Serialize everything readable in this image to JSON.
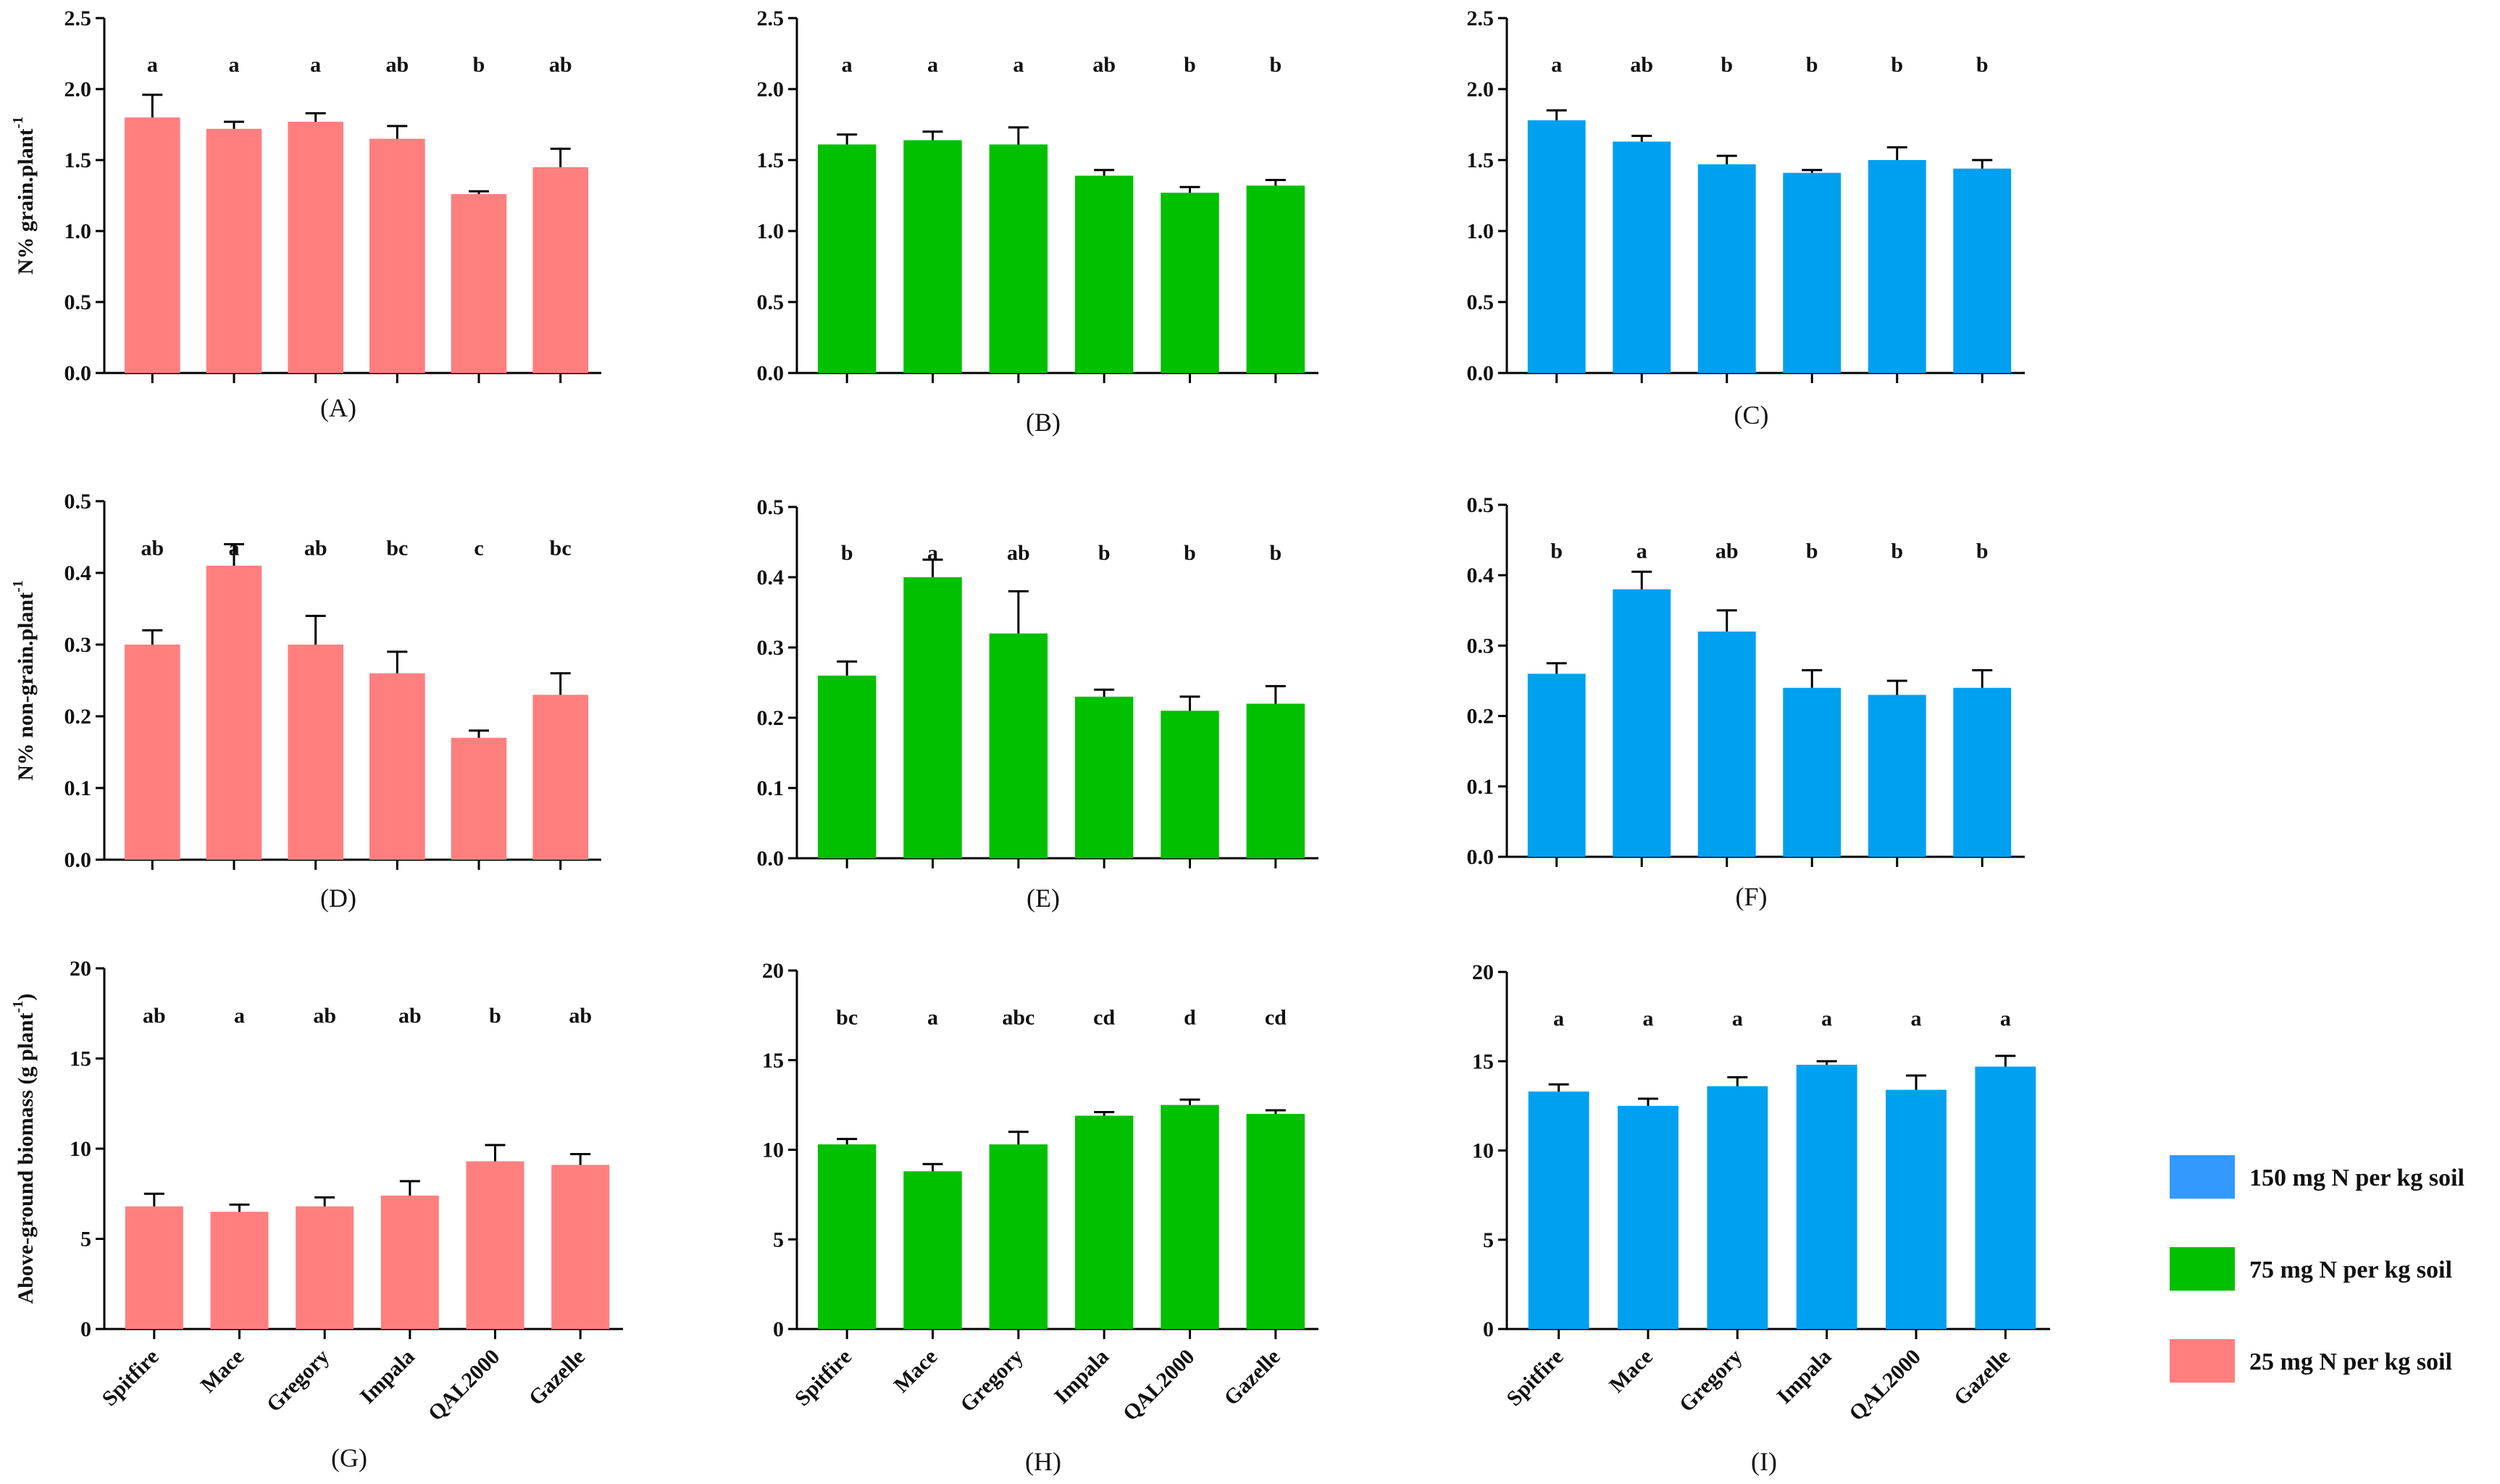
{
  "chart_data": [
    {
      "panel": "(A)",
      "type": "bar",
      "ylabel": "N% grain.plant",
      "ylabel_sup": "-1",
      "ylim": [
        0,
        2.5
      ],
      "yticks": [
        "0.0",
        "0.5",
        "1.0",
        "1.5",
        "2.0",
        "2.5"
      ],
      "color": "#FF7F7F",
      "treatment": "25 mg N per kg soil",
      "categories": [
        "Spitfire",
        "Mace",
        "Gregory",
        "Impala",
        "QAL2000",
        "Gazelle"
      ],
      "values": [
        1.8,
        1.72,
        1.77,
        1.65,
        1.26,
        1.45
      ],
      "errors": [
        0.16,
        0.05,
        0.06,
        0.09,
        0.02,
        0.13
      ],
      "letters": [
        "a",
        "a",
        "a",
        "ab",
        "b",
        "ab"
      ],
      "show_categories": false
    },
    {
      "panel": "(B)",
      "type": "bar",
      "ylabel": "",
      "ylabel_sup": "",
      "ylim": [
        0,
        2.5
      ],
      "yticks": [
        "0.0",
        "0.5",
        "1.0",
        "1.5",
        "2.0",
        "2.5"
      ],
      "color": "#00C000",
      "treatment": "75 mg N per kg soil",
      "categories": [
        "Spitfire",
        "Mace",
        "Gregory",
        "Impala",
        "QAL2000",
        "Gazelle"
      ],
      "values": [
        1.61,
        1.64,
        1.61,
        1.39,
        1.27,
        1.32
      ],
      "errors": [
        0.07,
        0.06,
        0.12,
        0.04,
        0.04,
        0.04
      ],
      "letters": [
        "a",
        "a",
        "a",
        "ab",
        "b",
        "b"
      ],
      "show_categories": false
    },
    {
      "panel": "(C)",
      "type": "bar",
      "ylabel": "",
      "ylabel_sup": "",
      "ylim": [
        0,
        2.5
      ],
      "yticks": [
        "0.0",
        "0.5",
        "1.0",
        "1.5",
        "2.0",
        "2.5"
      ],
      "color": "#00A0F0",
      "treatment": "150 mg N per kg soil",
      "categories": [
        "Spitfire",
        "Mace",
        "Gregory",
        "Impala",
        "QAL2000",
        "Gazelle"
      ],
      "values": [
        1.78,
        1.63,
        1.47,
        1.41,
        1.5,
        1.44
      ],
      "errors": [
        0.07,
        0.04,
        0.06,
        0.02,
        0.09,
        0.06
      ],
      "letters": [
        "a",
        "ab",
        "b",
        "b",
        "b",
        "b"
      ],
      "show_categories": false
    },
    {
      "panel": "(D)",
      "type": "bar",
      "ylabel": "N% non-grain.plant",
      "ylabel_sup": "-1",
      "ylim": [
        0,
        0.5
      ],
      "yticks": [
        "0.0",
        "0.1",
        "0.2",
        "0.3",
        "0.4",
        "0.5"
      ],
      "color": "#FF7F7F",
      "treatment": "25 mg N per kg soil",
      "categories": [
        "Spitfire",
        "Mace",
        "Gregory",
        "Impala",
        "QAL2000",
        "Gazelle"
      ],
      "values": [
        0.3,
        0.41,
        0.3,
        0.26,
        0.17,
        0.23
      ],
      "errors": [
        0.02,
        0.03,
        0.04,
        0.03,
        0.01,
        0.03
      ],
      "letters": [
        "ab",
        "a",
        "ab",
        "bc",
        "c",
        "bc"
      ],
      "show_categories": false
    },
    {
      "panel": "(E)",
      "type": "bar",
      "ylabel": "",
      "ylabel_sup": "",
      "ylim": [
        0,
        0.5
      ],
      "yticks": [
        "0.0",
        "0.1",
        "0.2",
        "0.3",
        "0.4",
        "0.5"
      ],
      "color": "#00C000",
      "treatment": "75 mg N per kg soil",
      "categories": [
        "Spitfire",
        "Mace",
        "Gregory",
        "Impala",
        "QAL2000",
        "Gazelle"
      ],
      "values": [
        0.26,
        0.4,
        0.32,
        0.23,
        0.21,
        0.22
      ],
      "errors": [
        0.02,
        0.025,
        0.06,
        0.01,
        0.02,
        0.025
      ],
      "letters": [
        "b",
        "a",
        "ab",
        "b",
        "b",
        "b"
      ],
      "show_categories": false
    },
    {
      "panel": "(F)",
      "type": "bar",
      "ylabel": "",
      "ylabel_sup": "",
      "ylim": [
        0,
        0.5
      ],
      "yticks": [
        "0.0",
        "0.1",
        "0.2",
        "0.3",
        "0.4",
        "0.5"
      ],
      "color": "#00A0F0",
      "treatment": "150 mg N per kg soil",
      "categories": [
        "Spitfire",
        "Mace",
        "Gregory",
        "Impala",
        "QAL2000",
        "Gazelle"
      ],
      "values": [
        0.26,
        0.38,
        0.32,
        0.24,
        0.23,
        0.24
      ],
      "errors": [
        0.015,
        0.025,
        0.03,
        0.025,
        0.02,
        0.025
      ],
      "letters": [
        "b",
        "a",
        "ab",
        "b",
        "b",
        "b"
      ],
      "show_categories": false
    },
    {
      "panel": "(G)",
      "type": "bar",
      "ylabel": "Above-ground biomass (g plant",
      "ylabel_sup": "-1",
      "ylabel_tail": ")",
      "ylim": [
        0,
        20
      ],
      "yticks": [
        "0",
        "5",
        "10",
        "15",
        "20"
      ],
      "color": "#FF7F7F",
      "treatment": "25 mg N per kg soil",
      "categories": [
        "Spitfire",
        "Mace",
        "Gregory",
        "Impala",
        "QAL2000",
        "Gazelle"
      ],
      "values": [
        6.8,
        6.5,
        6.8,
        7.4,
        9.3,
        9.1
      ],
      "errors": [
        0.7,
        0.4,
        0.5,
        0.8,
        0.9,
        0.6
      ],
      "letters": [
        "ab",
        "a",
        "ab",
        "ab",
        "b",
        "ab"
      ],
      "show_categories": true
    },
    {
      "panel": "(H)",
      "type": "bar",
      "ylabel": "",
      "ylabel_sup": "",
      "ylim": [
        0,
        20
      ],
      "yticks": [
        "0",
        "5",
        "10",
        "15",
        "20"
      ],
      "color": "#00C000",
      "treatment": "75 mg N per kg soil",
      "categories": [
        "Spitfire",
        "Mace",
        "Gregory",
        "Impala",
        "QAL2000",
        "Gazelle"
      ],
      "values": [
        10.3,
        8.8,
        10.3,
        11.9,
        12.5,
        12.0
      ],
      "errors": [
        0.3,
        0.4,
        0.7,
        0.2,
        0.3,
        0.2
      ],
      "letters": [
        "bc",
        "a",
        "abc",
        "cd",
        "d",
        "cd"
      ],
      "show_categories": true
    },
    {
      "panel": "(I)",
      "type": "bar",
      "ylabel": "",
      "ylabel_sup": "",
      "ylim": [
        0,
        20
      ],
      "yticks": [
        "0",
        "5",
        "10",
        "15",
        "20"
      ],
      "color": "#00A0F0",
      "treatment": "150 mg N per kg soil",
      "categories": [
        "Spitfire",
        "Mace",
        "Gregory",
        "Impala",
        "QAL2000",
        "Gazelle"
      ],
      "values": [
        13.3,
        12.5,
        13.6,
        14.8,
        13.4,
        14.7
      ],
      "errors": [
        0.4,
        0.4,
        0.5,
        0.2,
        0.8,
        0.6
      ],
      "letters": [
        "a",
        "a",
        "a",
        "a",
        "a",
        "a"
      ],
      "show_categories": true
    }
  ],
  "legend": [
    {
      "label": "150 mg N per kg soil",
      "color": "#3399FF"
    },
    {
      "label": "75 mg N per kg soil",
      "color": "#00C000"
    },
    {
      "label": "25 mg N per kg soil",
      "color": "#FF7F7F"
    }
  ]
}
